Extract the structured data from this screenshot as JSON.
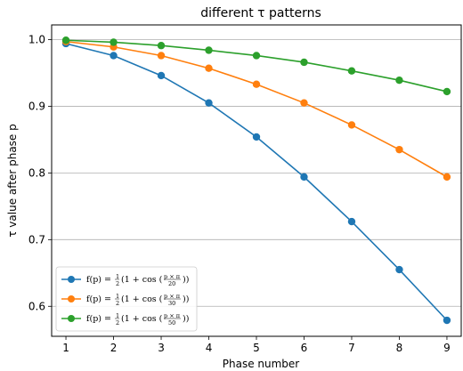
{
  "chart_data": {
    "type": "line",
    "title": "different τ patterns",
    "xlabel": "Phase number",
    "ylabel": "τ value after phase p",
    "x": [
      1,
      2,
      3,
      4,
      5,
      6,
      7,
      8,
      9
    ],
    "xticks": [
      "1",
      "2",
      "3",
      "4",
      "5",
      "6",
      "7",
      "8",
      "9"
    ],
    "yticks": [
      "0.6",
      "0.7",
      "0.8",
      "0.9",
      "1.0"
    ],
    "ytick_values": [
      0.6,
      0.7,
      0.8,
      0.9,
      1.0
    ],
    "xlim": [
      0.7,
      9.3
    ],
    "ylim": [
      0.555,
      1.022
    ],
    "grid": "horizontal",
    "legend_position": "lower-left",
    "series": [
      {
        "name": "f(p) = ½(1 + cos(p×π/20))",
        "legend": {
          "prefix": "f(p) = ",
          "frac": "1/2",
          "mid": "(1 + cos (",
          "num": "p × π",
          "den": "20",
          "suffix": "))"
        },
        "color": "#1f77b4",
        "values": [
          0.994,
          0.976,
          0.946,
          0.905,
          0.854,
          0.794,
          0.727,
          0.655,
          0.579
        ]
      },
      {
        "name": "f(p) = ½(1 + cos(p×π/30))",
        "legend": {
          "prefix": "f(p) = ",
          "frac": "1/2",
          "mid": "(1 + cos (",
          "num": "p × π",
          "den": "30",
          "suffix": "))"
        },
        "color": "#ff7f0e",
        "values": [
          0.997,
          0.989,
          0.976,
          0.957,
          0.933,
          0.905,
          0.872,
          0.835,
          0.794
        ]
      },
      {
        "name": "f(p) = ½(1 + cos(p×π/50))",
        "legend": {
          "prefix": "f(p) = ",
          "frac": "1/2",
          "mid": "(1 + cos (",
          "num": "p × π",
          "den": "50",
          "suffix": "))"
        },
        "color": "#2ca02c",
        "values": [
          0.999,
          0.996,
          0.991,
          0.984,
          0.976,
          0.966,
          0.953,
          0.939,
          0.922
        ]
      }
    ]
  }
}
